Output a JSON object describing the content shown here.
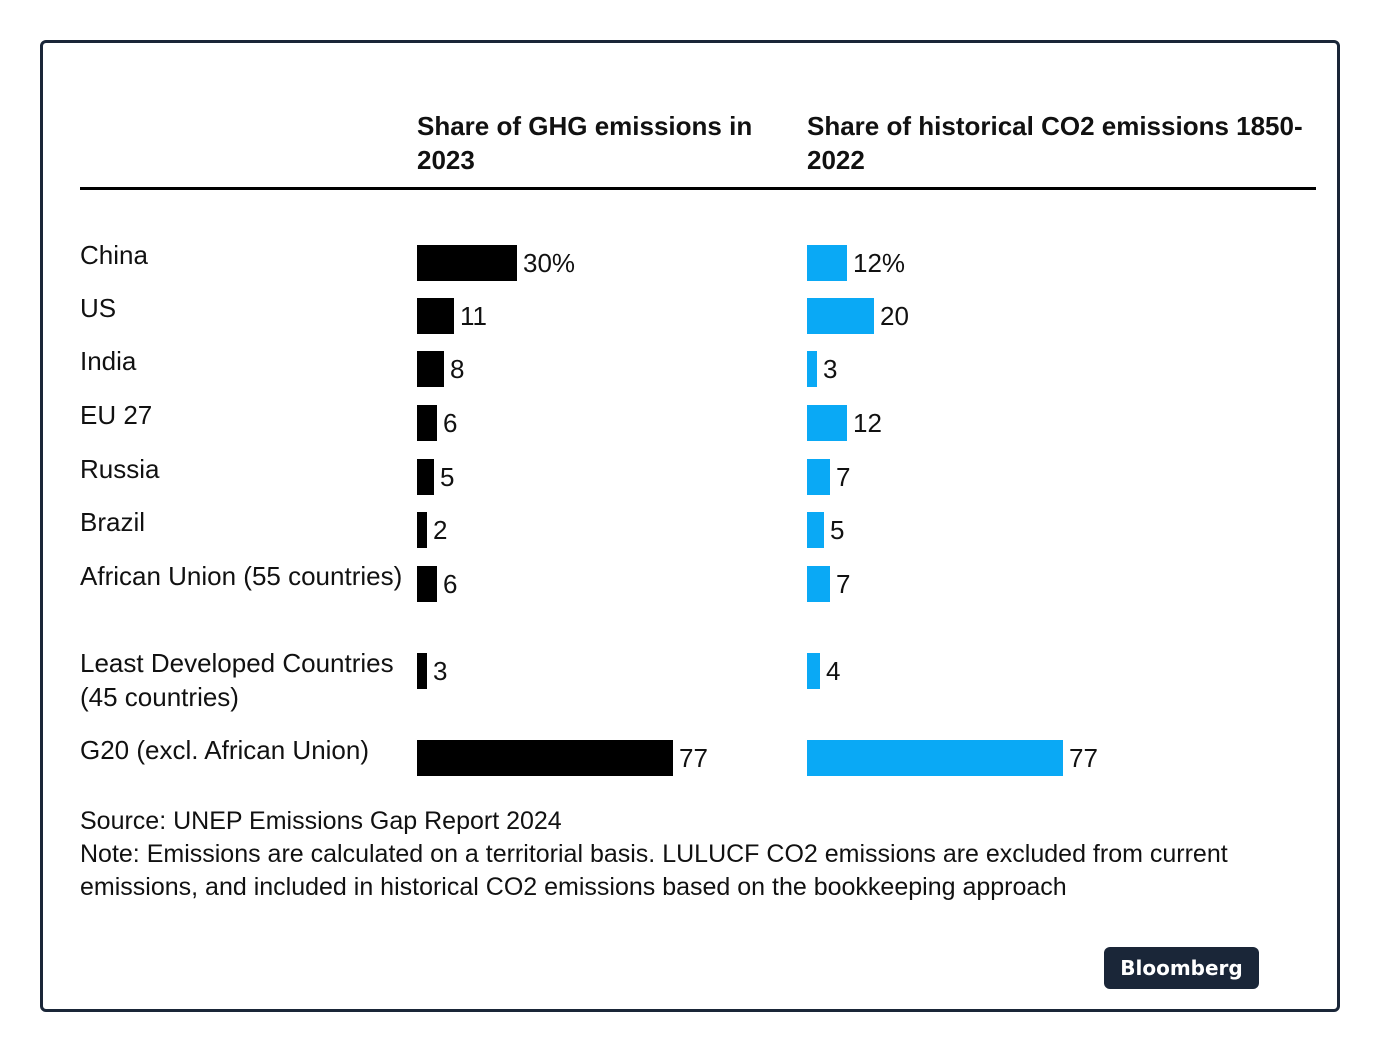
{
  "chart_data": {
    "type": "bar",
    "orientation": "horizontal",
    "categories": [
      "China",
      "US",
      "India",
      "EU 27",
      "Russia",
      "Brazil",
      "African Union (55 countries)",
      "Least Developed Countries (45 countries)",
      "G20 (excl. African Union)"
    ],
    "series": [
      {
        "name": "Share of GHG emissions in 2023",
        "values": [
          30,
          11,
          8,
          6,
          5,
          2,
          6,
          3,
          77
        ],
        "labels": [
          "30%",
          "11",
          "8",
          "6",
          "5",
          "2",
          "6",
          "3",
          "77"
        ],
        "color": "#000000"
      },
      {
        "name": "Share of historical CO2 emissions 1850-2022",
        "values": [
          12,
          20,
          3,
          12,
          7,
          5,
          7,
          4,
          77
        ],
        "labels": [
          "12%",
          "20",
          "3",
          "12",
          "7",
          "5",
          "7",
          "4",
          "77"
        ],
        "color": "#0aa9f5"
      }
    ],
    "unit": "%",
    "grid": false,
    "legend": "none"
  },
  "footnotes": {
    "source": "Source: UNEP Emissions Gap Report 2024",
    "note": "Note: Emissions are calculated on a territorial basis. LULUCF CO2 emissions are excluded from current emissions, and included in historical CO2 emissions based on the bookkeeping approach"
  },
  "brand": {
    "logo_text": "Bloomberg",
    "badge_color": "#1a2638"
  }
}
